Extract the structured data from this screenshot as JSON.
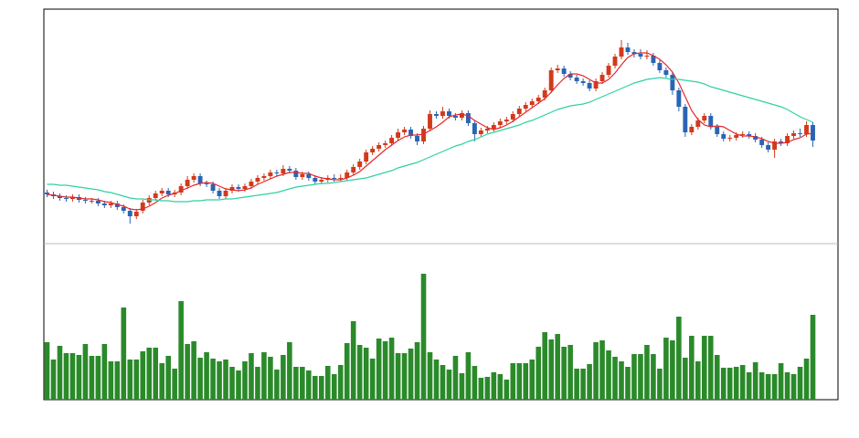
{
  "chart_data": [
    {
      "type": "candlestick",
      "up_color": "#d13a1a",
      "down_color": "#2a64b4",
      "ylim": [
        0,
        257
      ],
      "open": [
        56,
        54,
        52,
        50,
        49,
        51,
        48,
        47,
        47,
        44,
        42,
        44,
        40,
        36,
        30,
        36,
        45,
        50,
        55,
        58,
        54,
        56,
        63,
        70,
        74,
        66,
        65,
        58,
        52,
        58,
        62,
        60,
        63,
        68,
        72,
        74,
        78,
        77,
        82,
        80,
        73,
        76,
        72,
        68,
        70,
        72,
        71,
        72,
        78,
        84,
        90,
        100,
        104,
        108,
        110,
        116,
        122,
        125,
        118,
        112,
        126,
        142,
        140,
        145,
        140,
        138,
        143,
        132,
        120,
        124,
        126,
        130,
        134,
        136,
        142,
        148,
        152,
        156,
        160,
        168,
        190,
        192,
        186,
        182,
        178,
        176,
        170,
        178,
        185,
        195,
        205,
        215,
        210,
        208,
        205,
        206,
        198,
        190,
        185,
        168,
        150,
        122,
        128,
        135,
        140,
        128,
        120,
        115,
        116,
        119,
        120,
        118,
        114,
        108,
        103,
        112,
        110,
        118,
        121,
        120,
        130
      ],
      "high": [
        59,
        57,
        55,
        53,
        54,
        54,
        51,
        50,
        50,
        47,
        47,
        47,
        43,
        39,
        38,
        48,
        53,
        58,
        61,
        61,
        59,
        66,
        74,
        77,
        77,
        69,
        68,
        61,
        61,
        65,
        65,
        66,
        71,
        75,
        77,
        81,
        81,
        86,
        85,
        83,
        79,
        79,
        75,
        73,
        75,
        76,
        76,
        81,
        87,
        93,
        103,
        107,
        111,
        113,
        119,
        126,
        128,
        128,
        121,
        129,
        146,
        145,
        150,
        148,
        143,
        146,
        146,
        135,
        127,
        129,
        133,
        137,
        139,
        145,
        151,
        155,
        159,
        163,
        171,
        193,
        196,
        195,
        189,
        185,
        181,
        179,
        181,
        188,
        198,
        208,
        223,
        220,
        213,
        213,
        212,
        209,
        201,
        193,
        188,
        171,
        153,
        131,
        138,
        143,
        143,
        131,
        123,
        119,
        122,
        123,
        123,
        121,
        117,
        111,
        115,
        115,
        121,
        124,
        126,
        134,
        133
      ],
      "low": [
        51,
        49,
        47,
        46,
        46,
        45,
        44,
        44,
        41,
        39,
        39,
        37,
        33,
        22,
        27,
        33,
        42,
        47,
        52,
        51,
        51,
        53,
        60,
        67,
        63,
        62,
        55,
        49,
        49,
        55,
        57,
        57,
        60,
        65,
        69,
        71,
        74,
        74,
        77,
        70,
        70,
        69,
        65,
        65,
        67,
        68,
        68,
        69,
        75,
        81,
        87,
        97,
        101,
        105,
        107,
        113,
        119,
        115,
        108,
        109,
        123,
        137,
        137,
        137,
        135,
        135,
        129,
        112,
        117,
        121,
        123,
        127,
        131,
        133,
        139,
        145,
        149,
        153,
        157,
        165,
        187,
        183,
        179,
        175,
        173,
        167,
        167,
        175,
        182,
        192,
        202,
        207,
        204,
        202,
        202,
        195,
        187,
        182,
        163,
        145,
        117,
        119,
        125,
        132,
        125,
        117,
        112,
        112,
        113,
        116,
        115,
        111,
        105,
        100,
        94,
        107,
        107,
        115,
        117,
        117,
        106
      ],
      "close": [
        54,
        52,
        50,
        49,
        51,
        48,
        47,
        47,
        44,
        42,
        44,
        40,
        36,
        30,
        35,
        45,
        50,
        55,
        58,
        54,
        56,
        63,
        70,
        74,
        66,
        65,
        58,
        52,
        58,
        62,
        60,
        63,
        68,
        72,
        74,
        78,
        77,
        82,
        80,
        73,
        76,
        72,
        68,
        70,
        72,
        71,
        72,
        78,
        84,
        90,
        100,
        104,
        108,
        110,
        116,
        122,
        125,
        118,
        112,
        126,
        142,
        140,
        145,
        140,
        138,
        143,
        132,
        120,
        124,
        126,
        130,
        134,
        136,
        142,
        148,
        152,
        156,
        160,
        168,
        190,
        192,
        186,
        182,
        178,
        176,
        170,
        178,
        185,
        195,
        205,
        215,
        210,
        208,
        205,
        206,
        198,
        190,
        185,
        168,
        150,
        122,
        128,
        135,
        140,
        128,
        120,
        115,
        116,
        119,
        120,
        118,
        114,
        108,
        103,
        112,
        110,
        118,
        121,
        120,
        130,
        113
      ],
      "series": [
        {
          "color": "#e8262a",
          "values": [
            54,
            53,
            52,
            51,
            51,
            50,
            49,
            49,
            48,
            46,
            45,
            43,
            41,
            38,
            37,
            38,
            41,
            45,
            50,
            53,
            55,
            58,
            61,
            64,
            66,
            67,
            66,
            63,
            60,
            59,
            58,
            59,
            61,
            65,
            68,
            71,
            74,
            76,
            78,
            78,
            77,
            77,
            74,
            72,
            71,
            70,
            70,
            72,
            75,
            79,
            85,
            91,
            97,
            103,
            108,
            113,
            117,
            119,
            119,
            120,
            124,
            128,
            133,
            139,
            141,
            142,
            140,
            135,
            131,
            127,
            125,
            127,
            130,
            134,
            139,
            144,
            149,
            154,
            159,
            166,
            174,
            181,
            186,
            186,
            184,
            180,
            176,
            176,
            180,
            187,
            196,
            204,
            208,
            209,
            209,
            206,
            202,
            196,
            188,
            176,
            161,
            146,
            136,
            130,
            128,
            129,
            128,
            124,
            120,
            118,
            118,
            117,
            115,
            112,
            110,
            110,
            111,
            114,
            116,
            120,
            121
          ]
        },
        {
          "color": "#2fd1a4",
          "values": [
            65,
            65,
            64,
            64,
            63,
            62,
            61,
            60,
            59,
            57,
            56,
            54,
            52,
            50,
            49,
            49,
            48,
            48,
            47,
            47,
            46,
            46,
            46,
            47,
            47,
            48,
            48,
            48,
            49,
            49,
            50,
            51,
            52,
            53,
            54,
            55,
            56,
            58,
            60,
            62,
            63,
            64,
            65,
            66,
            66,
            67,
            68,
            69,
            70,
            71,
            72,
            74,
            76,
            78,
            80,
            83,
            85,
            87,
            89,
            92,
            95,
            98,
            101,
            104,
            107,
            109,
            112,
            114,
            117,
            120,
            122,
            124,
            126,
            128,
            130,
            133,
            135,
            138,
            141,
            144,
            147,
            149,
            151,
            152,
            153,
            155,
            158,
            161,
            164,
            167,
            170,
            173,
            176,
            178,
            180,
            181,
            182,
            181,
            180,
            180,
            179,
            178,
            177,
            175,
            172,
            170,
            168,
            166,
            164,
            162,
            160,
            158,
            156,
            154,
            152,
            150,
            147,
            143,
            139,
            136,
            133
          ]
        }
      ]
    },
    {
      "type": "bar",
      "color": "#2a8a2a",
      "ylim": [
        0,
        171
      ],
      "values": [
        63,
        44,
        59,
        51,
        51,
        49,
        61,
        48,
        48,
        61,
        42,
        42,
        101,
        44,
        44,
        53,
        57,
        57,
        40,
        48,
        34,
        108,
        61,
        64,
        46,
        52,
        45,
        42,
        44,
        36,
        32,
        42,
        51,
        36,
        52,
        47,
        33,
        49,
        63,
        36,
        36,
        32,
        26,
        26,
        37,
        28,
        38,
        62,
        86,
        60,
        57,
        45,
        67,
        64,
        68,
        51,
        51,
        56,
        63,
        138,
        52,
        44,
        38,
        33,
        48,
        29,
        52,
        37,
        24,
        25,
        30,
        28,
        22,
        40,
        40,
        40,
        44,
        58,
        74,
        66,
        72,
        58,
        60,
        34,
        34,
        39,
        63,
        65,
        54,
        47,
        42,
        36,
        50,
        50,
        60,
        50,
        34,
        68,
        65,
        91,
        46,
        70,
        42,
        70,
        70,
        49,
        35,
        35,
        36,
        38,
        30,
        41,
        30,
        28,
        28,
        40,
        30,
        28,
        36,
        45,
        93
      ]
    }
  ]
}
